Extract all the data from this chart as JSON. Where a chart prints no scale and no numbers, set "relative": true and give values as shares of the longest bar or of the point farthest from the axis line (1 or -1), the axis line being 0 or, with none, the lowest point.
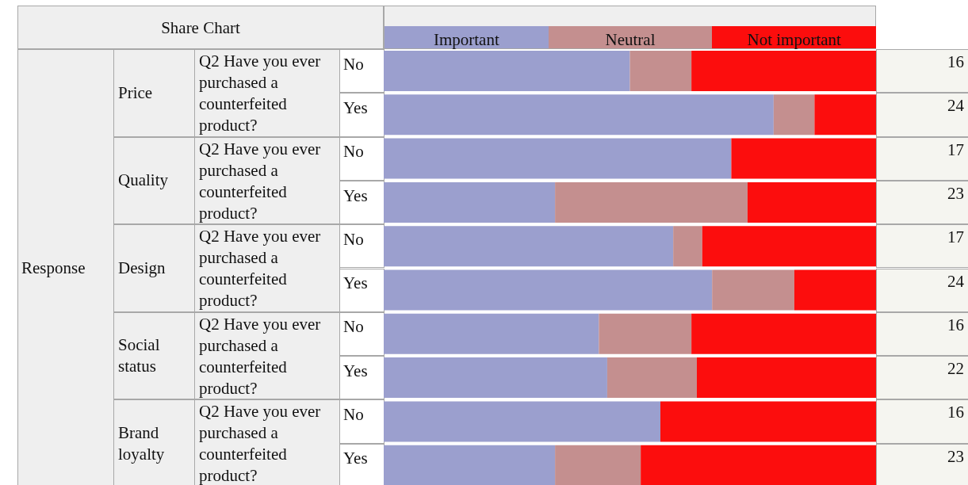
{
  "chart_data": {
    "type": "bar",
    "orientation": "horizontal",
    "stacked": true,
    "relative": true,
    "legend": "top",
    "categories": [
      "No",
      "Yes",
      "No",
      "Yes",
      "No",
      "Yes",
      "No",
      "Yes",
      "No",
      "Yes"
    ],
    "series": [
      {
        "name": "Important",
        "color": "#9b9fce",
        "values": [
          0.5,
          0.792,
          0.706,
          0.348,
          0.588,
          0.667,
          0.437,
          0.454,
          0.562,
          0.348
        ]
      },
      {
        "name": "Neutral",
        "color": "#c48f8f",
        "values": [
          0.125,
          0.083,
          0,
          0.391,
          0.059,
          0.167,
          0.188,
          0.182,
          0,
          0.174
        ]
      },
      {
        "name": "Not important",
        "color": "#fc0d0d",
        "values": [
          0.375,
          0.125,
          0.294,
          0.261,
          0.353,
          0.166,
          0.375,
          0.364,
          0.438,
          0.478
        ]
      }
    ],
    "annotations": [
      "Share Chart",
      "Response",
      "Price",
      "Q2 Have you ever purchased a counterfeited product?",
      "Quality",
      "Q2 Have you ever purchased a counterfeited product?",
      "Design",
      "Q2 Have you ever purchased a counterfeited product?",
      "Social status",
      "Q2 Have you ever purchased a counterfeited product?",
      "Brand loyalty",
      "Q2 Have you ever purchased a counterfeited product?",
      "16",
      "24",
      "17",
      "23",
      "17",
      "24",
      "16",
      "22",
      "16",
      "23"
    ]
  }
}
